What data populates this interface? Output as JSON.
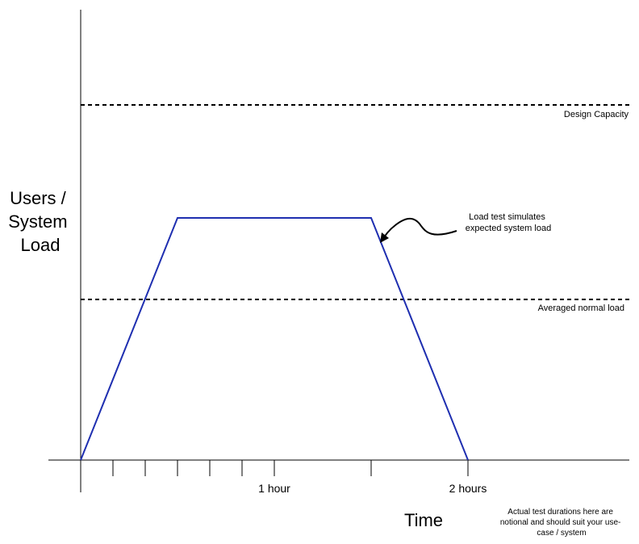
{
  "y_axis": {
    "label_lines": [
      "Users /",
      "System",
      "Load"
    ]
  },
  "x_axis": {
    "label": "Time",
    "tick_labels": [
      "1 hour",
      "2 hours"
    ]
  },
  "reference_lines": {
    "design_capacity": "Design Capacity",
    "averaged_normal": "Averaged normal load"
  },
  "callout": {
    "lines": [
      "Load test simulates",
      "expected system load"
    ]
  },
  "footnote": {
    "lines": [
      "Actual test durations here are",
      "notional and should suit your use-",
      "case / system"
    ]
  },
  "colors": {
    "load_line": "#1f2fb0",
    "axes": "#000000"
  }
}
